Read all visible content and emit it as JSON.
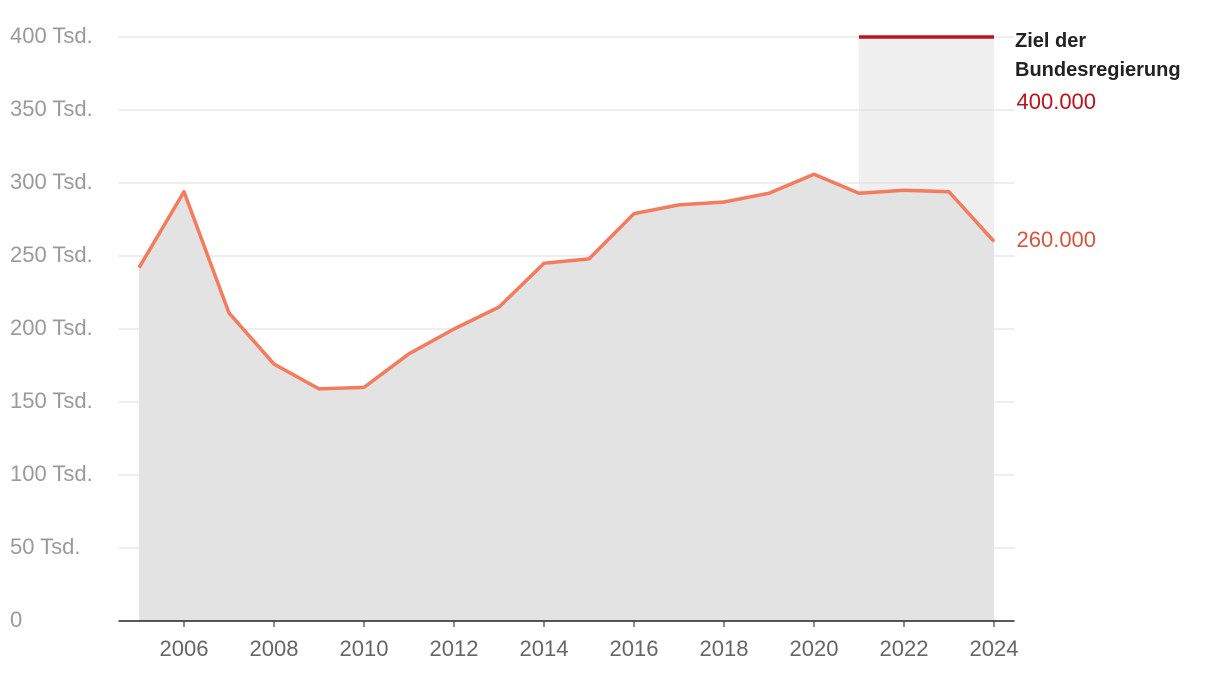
{
  "chart_data": {
    "type": "line",
    "x": [
      2005,
      2006,
      2007,
      2008,
      2009,
      2010,
      2011,
      2012,
      2013,
      2014,
      2015,
      2016,
      2017,
      2018,
      2019,
      2020,
      2021,
      2022,
      2023,
      2024
    ],
    "series": [
      {
        "color": "#f47b5e",
        "area_color": "#e3e3e3",
        "values": [
          242,
          294,
          211,
          176,
          159,
          160,
          183,
          200,
          215,
          245,
          248,
          279,
          285,
          287,
          293,
          306,
          293,
          295,
          294,
          260
        ],
        "value_labels": [
          null,
          null,
          null,
          null,
          null,
          null,
          null,
          null,
          null,
          null,
          null,
          null,
          null,
          null,
          null,
          null,
          null,
          null,
          null,
          "260.000"
        ]
      },
      {
        "name": "Ziel der Bundesregierung",
        "color": "#c0121a",
        "area_color": "#efefef",
        "x": [
          2021,
          2024
        ],
        "values": [
          400,
          400
        ],
        "value_labels": [
          null,
          "400.000"
        ]
      }
    ],
    "xlim": [
      2004.5,
      2024.5
    ],
    "xticks": [
      2006,
      2008,
      2010,
      2012,
      2014,
      2016,
      2018,
      2020,
      2022,
      2024
    ],
    "ylim": [
      0,
      400
    ],
    "yticks": [
      0,
      {
        "value": 50,
        "label": "50 Tsd."
      },
      {
        "value": 100,
        "label": "100 Tsd."
      },
      {
        "value": 150,
        "label": "150 Tsd."
      },
      {
        "value": 200,
        "label": "200 Tsd."
      },
      {
        "value": 250,
        "label": "250 Tsd."
      },
      {
        "value": 300,
        "label": "300 Tsd."
      },
      {
        "value": 350,
        "label": "350 Tsd."
      },
      {
        "value": 400,
        "label": "400 Tsd."
      }
    ],
    "grid": true
  }
}
